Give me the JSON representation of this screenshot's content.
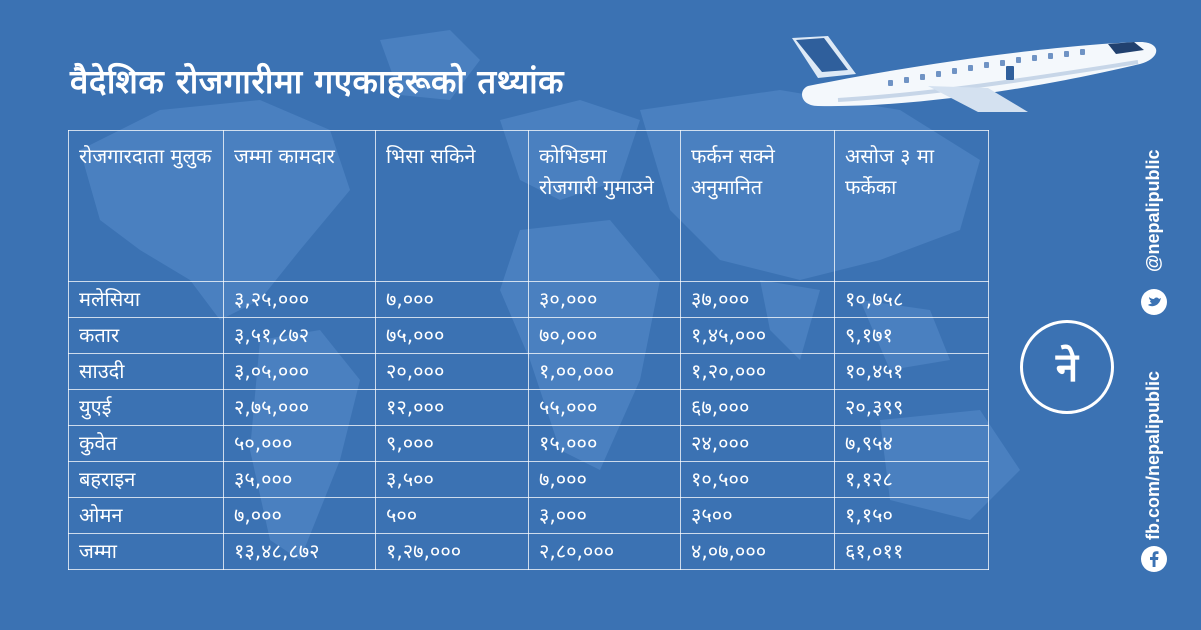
{
  "title": "वैदेशिक रोजगारीमा गएकाहरूको तथ्यांक",
  "colors": {
    "background": "#3b72b3",
    "map": "#4a80c0",
    "text": "#ffffff"
  },
  "table": {
    "headers": [
      "रोजगारदाता मुलुक",
      "जम्मा कामदार",
      "भिसा सकिने",
      "कोभिडमा रोजगारी गुमाउने",
      "फर्कन सक्ने अनुमानित",
      "असोज ३ मा फर्केका"
    ],
    "rows": [
      [
        "मलेसिया",
        "३,२५,०००",
        "७,०००",
        "३०,०००",
        "३७,०००",
        "१०,७५८"
      ],
      [
        "कतार",
        "३,५१,८७२",
        "७५,०००",
        "७०,०००",
        "१,४५,०००",
        "९,१७१"
      ],
      [
        "साउदी",
        "३,०५,०००",
        "२०,०००",
        "१,००,०००",
        "१,२०,०००",
        "१०,४५१"
      ],
      [
        "युएई",
        "२,७५,०००",
        "१२,०००",
        "५५,०००",
        "६७,०००",
        "२०,३९९"
      ],
      [
        "कुवेत",
        "५०,०००",
        "९,०००",
        "१५,०००",
        "२४,०००",
        "७,९५४"
      ],
      [
        "बहराइन",
        "३५,०००",
        "३,५००",
        "७,०००",
        "१०,५००",
        "१,१२८"
      ],
      [
        "ओमन",
        "७,०००",
        "५००",
        "३,०००",
        "३५००",
        "१,१५०"
      ],
      [
        "जम्मा",
        "१३,४८,८७२",
        "१,२७,०००",
        "२,८०,०००",
        "४,०७,०००",
        "६१,०११"
      ]
    ]
  },
  "social": {
    "twitter_handle": "@nepalipublic",
    "facebook_handle": "fb.com/nepalipublic",
    "twitter_icon": "twitter-icon",
    "facebook_icon": "facebook-icon"
  },
  "logo": {
    "letter": "ने"
  }
}
